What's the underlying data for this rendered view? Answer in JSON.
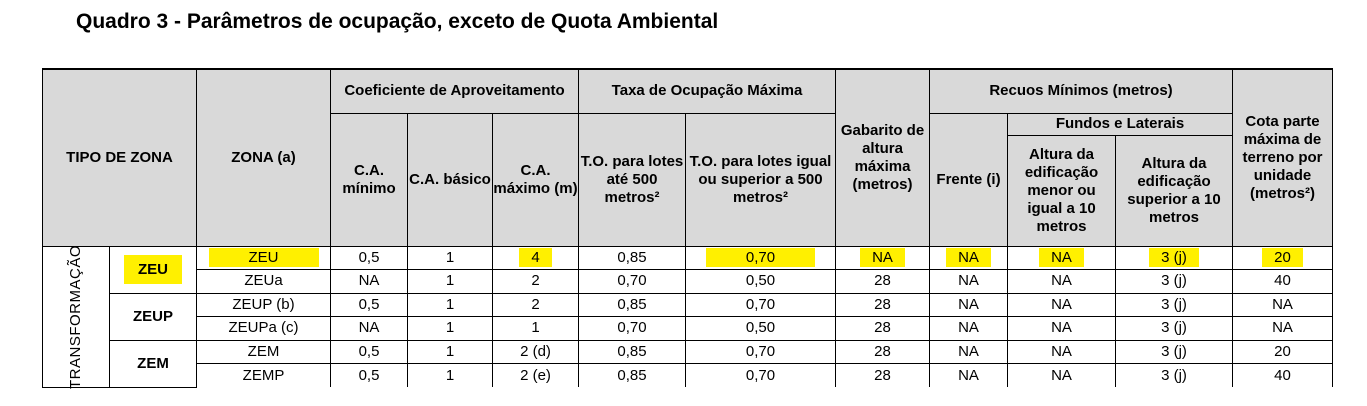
{
  "title": "Quadro 3 - Parâmetros de ocupação, exceto de Quota Ambiental",
  "headers": {
    "tipo_de_zona": "TIPO DE ZONA",
    "zona": "ZONA (a)",
    "coef": "Coeficiente de Aproveitamento",
    "ca_min": "C.A. mínimo",
    "ca_bas": "C.A. básico",
    "ca_max": "C.A. máximo (m)",
    "taxa": "Taxa de Ocupação Máxima",
    "to_ate": "T.O. para lotes até 500 metros²",
    "to_sup": "T.O. para lotes igual ou superior a 500 metros²",
    "gabarito": "Gabarito de altura máxima (metros)",
    "recuos": "Recuos Mínimos  (metros)",
    "frente": "Frente (i)",
    "fundos": "Fundos e Laterais",
    "alt_menor": "Altura da edificação menor ou igual a 10 metros",
    "alt_sup": "Altura da edificação superior a 10 metros",
    "cota": "Cota parte máxima de terreno por unidade (metros²)"
  },
  "tipo_label": "TRANSFORMAÇÃO",
  "groups": [
    "ZEU",
    "ZEUP",
    "ZEM"
  ],
  "rows": [
    {
      "zona": "ZEU",
      "ca_min": "0,5",
      "ca_bas": "1",
      "ca_max": "4",
      "to_ate": "0,85",
      "to_sup": "0,70",
      "gab": "NA",
      "frente": "NA",
      "menor": "NA",
      "sup": "3 (j)",
      "cota": "20"
    },
    {
      "zona": "ZEUa",
      "ca_min": "NA",
      "ca_bas": "1",
      "ca_max": "2",
      "to_ate": "0,70",
      "to_sup": "0,50",
      "gab": "28",
      "frente": "NA",
      "menor": "NA",
      "sup": "3 (j)",
      "cota": "40"
    },
    {
      "zona": "ZEUP (b)",
      "ca_min": "0,5",
      "ca_bas": "1",
      "ca_max": "2",
      "to_ate": "0,85",
      "to_sup": "0,70",
      "gab": "28",
      "frente": "NA",
      "menor": "NA",
      "sup": "3 (j)",
      "cota": "NA"
    },
    {
      "zona": "ZEUPa (c)",
      "ca_min": "NA",
      "ca_bas": "1",
      "ca_max": "1",
      "to_ate": "0,70",
      "to_sup": "0,50",
      "gab": "28",
      "frente": "NA",
      "menor": "NA",
      "sup": "3 (j)",
      "cota": "NA"
    },
    {
      "zona": "ZEM",
      "ca_min": "0,5",
      "ca_bas": "1",
      "ca_max": "2 (d)",
      "to_ate": "0,85",
      "to_sup": "0,70",
      "gab": "28",
      "frente": "NA",
      "menor": "NA",
      "sup": "3 (j)",
      "cota": "20"
    },
    {
      "zona": "ZEMP",
      "ca_min": "0,5",
      "ca_bas": "1",
      "ca_max": "2 (e)",
      "to_ate": "0,85",
      "to_sup": "0,70",
      "gab": "28",
      "frente": "NA",
      "menor": "NA",
      "sup": "3 (j)",
      "cota": "40"
    }
  ],
  "highlight_color": "#fff000"
}
